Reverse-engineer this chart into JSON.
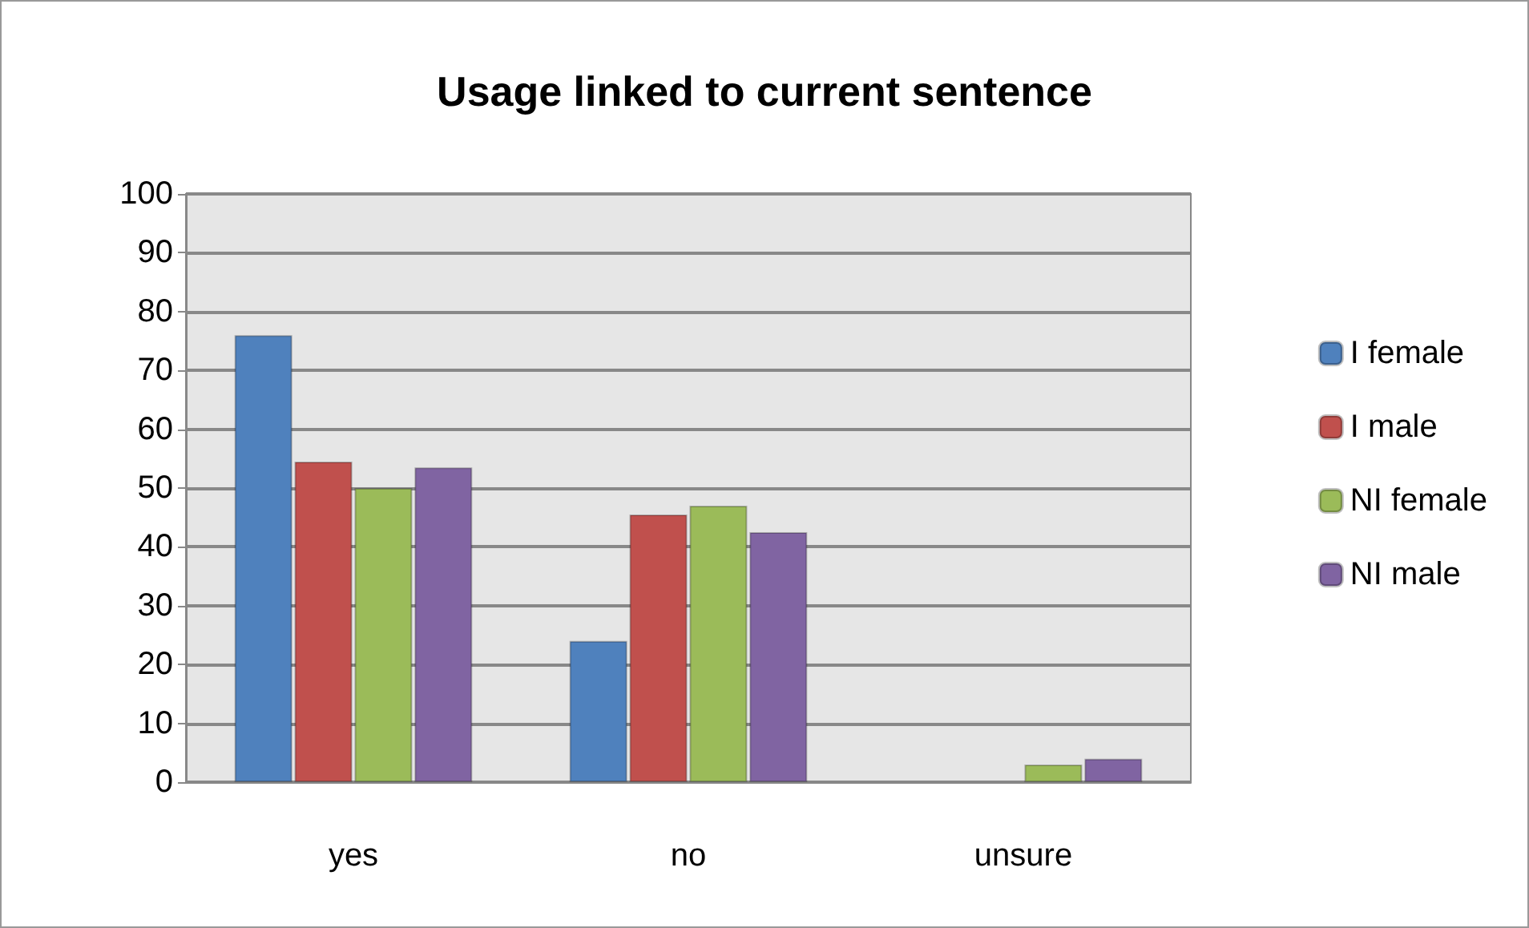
{
  "chart_data": {
    "type": "bar",
    "title": "Usage linked to current sentence",
    "categories": [
      "yes",
      "no",
      "unsure"
    ],
    "series": [
      {
        "name": "I female",
        "color": "#4f81bd",
        "values": [
          76,
          24,
          null
        ]
      },
      {
        "name": "I male",
        "color": "#c0504d",
        "values": [
          54.5,
          45.5,
          null
        ]
      },
      {
        "name": "NI female",
        "color": "#9bbb59",
        "values": [
          50,
          47,
          3
        ]
      },
      {
        "name": "NI male",
        "color": "#8064a2",
        "values": [
          53.5,
          42.5,
          4
        ]
      }
    ],
    "ylim": [
      0,
      100
    ],
    "yticks": [
      0,
      10,
      20,
      30,
      40,
      50,
      60,
      70,
      80,
      90,
      100
    ],
    "grid": "y",
    "legend": "right"
  }
}
